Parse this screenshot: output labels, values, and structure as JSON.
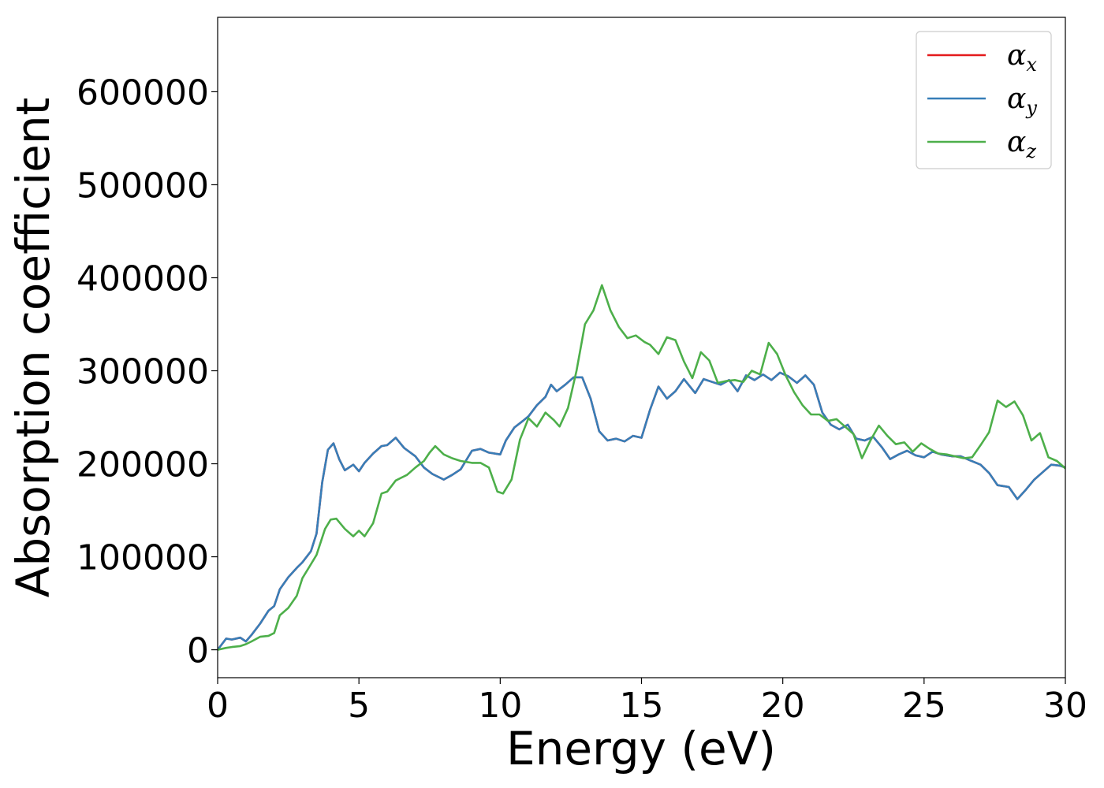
{
  "chart_data": {
    "type": "line",
    "xlabel": "Energy (eV)",
    "ylabel": "Absorption coefficient",
    "xlim": [
      0,
      30
    ],
    "ylim": [
      -30000,
      680000
    ],
    "xticks": [
      0,
      5,
      10,
      15,
      20,
      25,
      30
    ],
    "yticks": [
      0,
      100000,
      200000,
      300000,
      400000,
      500000,
      600000
    ],
    "grid": false,
    "legend_position": "top-right",
    "legend": [
      {
        "symbol": "α",
        "sub": "x",
        "color": "#e41a1c"
      },
      {
        "symbol": "α",
        "sub": "y",
        "color": "#377eb8"
      },
      {
        "symbol": "α",
        "sub": "z",
        "color": "#4daf4a"
      }
    ],
    "series": [
      {
        "name": "αx",
        "color": "#e41a1c",
        "x": [
          0,
          0.3,
          0.5,
          0.8,
          1.0,
          1.2,
          1.5,
          1.8,
          2.0,
          2.2,
          2.5,
          2.8,
          3.0,
          3.3,
          3.5,
          3.7,
          3.9,
          4.1,
          4.3,
          4.5,
          4.8,
          5.0,
          5.2,
          5.5,
          5.8,
          6.0,
          6.3,
          6.6,
          7.0,
          7.3,
          7.6,
          8.0,
          8.3,
          8.6,
          9.0,
          9.3,
          9.6,
          10.0,
          10.2,
          10.5,
          10.8,
          11.0,
          11.3,
          11.6,
          11.8,
          12.0,
          12.3,
          12.6,
          12.9,
          13.2,
          13.5,
          13.8,
          14.1,
          14.4,
          14.7,
          15.0,
          15.3,
          15.6,
          15.9,
          16.2,
          16.5,
          16.9,
          17.2,
          17.5,
          17.8,
          18.1,
          18.4,
          18.7,
          19.0,
          19.3,
          19.6,
          19.9,
          20.2,
          20.5,
          20.8,
          21.1,
          21.4,
          21.7,
          22.0,
          22.3,
          22.6,
          22.9,
          23.2,
          23.5,
          23.8,
          24.1,
          24.4,
          24.7,
          25.0,
          25.3,
          25.6,
          26.0,
          26.3,
          26.6,
          27.0,
          27.3,
          27.6,
          28.0,
          28.3,
          28.6,
          28.9,
          29.2,
          29.5,
          29.8,
          30.0
        ],
        "y": [
          0,
          12000,
          11000,
          13000,
          9000,
          16000,
          28000,
          42000,
          47000,
          65000,
          78000,
          88000,
          94000,
          106000,
          125000,
          180000,
          215000,
          222000,
          205000,
          193000,
          199000,
          192000,
          201000,
          211000,
          219000,
          220000,
          228000,
          217000,
          208000,
          196000,
          189000,
          183000,
          188000,
          194000,
          214000,
          216000,
          212000,
          210000,
          225000,
          239000,
          246000,
          251000,
          263000,
          272000,
          285000,
          278000,
          285000,
          293000,
          293000,
          270000,
          235000,
          225000,
          227000,
          224000,
          230000,
          228000,
          258000,
          283000,
          270000,
          278000,
          291000,
          276000,
          291000,
          288000,
          285000,
          290000,
          278000,
          295000,
          290000,
          296000,
          290000,
          298000,
          294000,
          287000,
          295000,
          285000,
          255000,
          242000,
          237000,
          242000,
          227000,
          225000,
          229000,
          218000,
          205000,
          210000,
          214000,
          209000,
          207000,
          213000,
          210000,
          208000,
          208000,
          204000,
          199000,
          190000,
          177000,
          175000,
          162000,
          172000,
          183000,
          191000,
          199000,
          198000,
          196000
        ]
      },
      {
        "name": "αy",
        "color": "#377eb8",
        "x": [
          0,
          0.3,
          0.5,
          0.8,
          1.0,
          1.2,
          1.5,
          1.8,
          2.0,
          2.2,
          2.5,
          2.8,
          3.0,
          3.3,
          3.5,
          3.7,
          3.9,
          4.1,
          4.3,
          4.5,
          4.8,
          5.0,
          5.2,
          5.5,
          5.8,
          6.0,
          6.3,
          6.6,
          7.0,
          7.3,
          7.6,
          8.0,
          8.3,
          8.6,
          9.0,
          9.3,
          9.6,
          10.0,
          10.2,
          10.5,
          10.8,
          11.0,
          11.3,
          11.6,
          11.8,
          12.0,
          12.3,
          12.6,
          12.9,
          13.2,
          13.5,
          13.8,
          14.1,
          14.4,
          14.7,
          15.0,
          15.3,
          15.6,
          15.9,
          16.2,
          16.5,
          16.9,
          17.2,
          17.5,
          17.8,
          18.1,
          18.4,
          18.7,
          19.0,
          19.3,
          19.6,
          19.9,
          20.2,
          20.5,
          20.8,
          21.1,
          21.4,
          21.7,
          22.0,
          22.3,
          22.6,
          22.9,
          23.2,
          23.5,
          23.8,
          24.1,
          24.4,
          24.7,
          25.0,
          25.3,
          25.6,
          26.0,
          26.3,
          26.6,
          27.0,
          27.3,
          27.6,
          28.0,
          28.3,
          28.6,
          28.9,
          29.2,
          29.5,
          29.8,
          30.0
        ],
        "y": [
          0,
          12000,
          11000,
          13000,
          9000,
          16000,
          28000,
          42000,
          47000,
          65000,
          78000,
          88000,
          94000,
          106000,
          125000,
          180000,
          215000,
          222000,
          205000,
          193000,
          199000,
          192000,
          201000,
          211000,
          219000,
          220000,
          228000,
          217000,
          208000,
          196000,
          189000,
          183000,
          188000,
          194000,
          214000,
          216000,
          212000,
          210000,
          225000,
          239000,
          246000,
          251000,
          263000,
          272000,
          285000,
          278000,
          285000,
          293000,
          293000,
          270000,
          235000,
          225000,
          227000,
          224000,
          230000,
          228000,
          258000,
          283000,
          270000,
          278000,
          291000,
          276000,
          291000,
          288000,
          285000,
          290000,
          278000,
          295000,
          290000,
          296000,
          290000,
          298000,
          294000,
          287000,
          295000,
          285000,
          255000,
          242000,
          237000,
          242000,
          227000,
          225000,
          229000,
          218000,
          205000,
          210000,
          214000,
          209000,
          207000,
          213000,
          210000,
          208000,
          208000,
          204000,
          199000,
          190000,
          177000,
          175000,
          162000,
          172000,
          183000,
          191000,
          199000,
          198000,
          196000
        ]
      },
      {
        "name": "αz",
        "color": "#4daf4a",
        "x": [
          0,
          0.3,
          0.5,
          0.8,
          1.0,
          1.2,
          1.5,
          1.8,
          2.0,
          2.2,
          2.5,
          2.8,
          3.0,
          3.3,
          3.5,
          3.8,
          4.0,
          4.2,
          4.5,
          4.8,
          5.0,
          5.2,
          5.5,
          5.8,
          6.0,
          6.3,
          6.7,
          7.0,
          7.3,
          7.5,
          7.7,
          8.0,
          8.3,
          8.6,
          9.0,
          9.3,
          9.6,
          9.9,
          10.1,
          10.4,
          10.7,
          11.0,
          11.3,
          11.6,
          11.9,
          12.1,
          12.4,
          12.7,
          13.0,
          13.3,
          13.6,
          13.9,
          14.2,
          14.5,
          14.8,
          15.1,
          15.3,
          15.6,
          15.9,
          16.2,
          16.5,
          16.8,
          17.1,
          17.4,
          17.7,
          18.0,
          18.3,
          18.6,
          18.9,
          19.2,
          19.5,
          19.8,
          20.1,
          20.4,
          20.7,
          21.0,
          21.3,
          21.6,
          21.9,
          22.2,
          22.5,
          22.8,
          23.1,
          23.4,
          23.7,
          24.0,
          24.3,
          24.6,
          24.9,
          25.2,
          25.5,
          25.8,
          26.1,
          26.4,
          26.7,
          27.0,
          27.3,
          27.6,
          27.9,
          28.2,
          28.5,
          28.8,
          29.1,
          29.4,
          29.7,
          30.0
        ],
        "y": [
          0,
          2000,
          3000,
          4000,
          6000,
          9000,
          14000,
          15000,
          18000,
          37000,
          45000,
          58000,
          77000,
          92000,
          102000,
          130000,
          140000,
          141000,
          130000,
          122000,
          128000,
          122000,
          136000,
          168000,
          170000,
          182000,
          188000,
          196000,
          203000,
          212000,
          219000,
          210000,
          206000,
          203000,
          201000,
          201000,
          196000,
          170000,
          168000,
          183000,
          226000,
          249000,
          240000,
          255000,
          247000,
          240000,
          260000,
          300000,
          350000,
          365000,
          392000,
          365000,
          347000,
          335000,
          338000,
          331000,
          328000,
          318000,
          336000,
          333000,
          310000,
          292000,
          320000,
          311000,
          287000,
          289000,
          290000,
          288000,
          300000,
          296000,
          330000,
          318000,
          295000,
          277000,
          263000,
          253000,
          253000,
          246000,
          248000,
          240000,
          232000,
          206000,
          225000,
          241000,
          230000,
          221000,
          223000,
          213000,
          222000,
          216000,
          211000,
          210000,
          208000,
          206000,
          207000,
          220000,
          234000,
          268000,
          261000,
          267000,
          252000,
          225000,
          233000,
          207000,
          203000,
          195000
        ]
      }
    ]
  }
}
